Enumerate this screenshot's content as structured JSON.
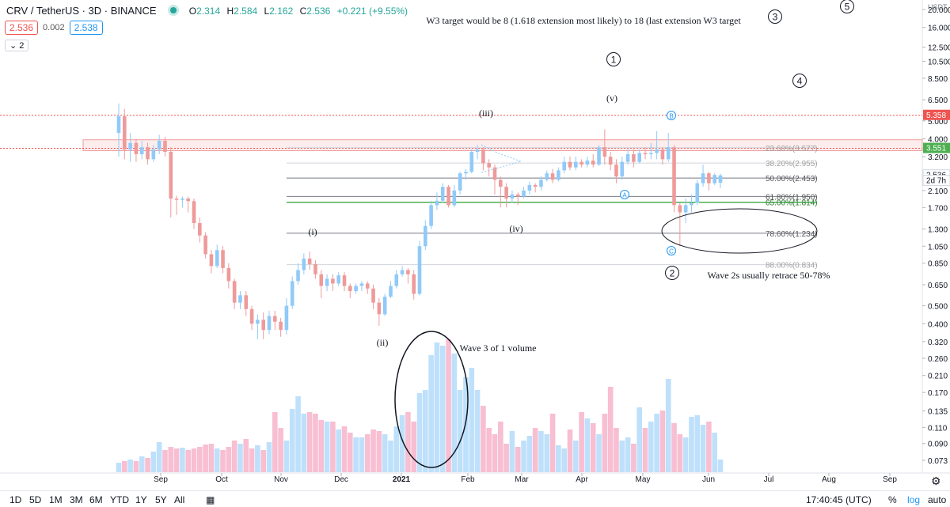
{
  "header": {
    "symbol": "CRV / TetherUS · 3D · BINANCE",
    "ohlc": [
      {
        "label": "O",
        "value": "2.314"
      },
      {
        "label": "H",
        "value": "2.584"
      },
      {
        "label": "L",
        "value": "2.162"
      },
      {
        "label": "C",
        "value": "2.536"
      },
      {
        "label": "",
        "value": "+0.221 (+9.55%)"
      }
    ],
    "bid": "2.536",
    "spread": "0.002",
    "ask": "2.538",
    "collapse_label": "2"
  },
  "colors": {
    "up": "#90caf9",
    "down": "#ef9a9a",
    "green_line": "#4caf50",
    "red_dotted": "#ef5350",
    "fib_label": "#9e9e9e",
    "price_tag": "#ef5350",
    "price_tag2": "#4caf50"
  },
  "chart_data": {
    "type": "candlestick",
    "y_scale": "log",
    "ylim": [
      0.066,
      22
    ],
    "y_ticks": [
      "20.000",
      "16.000",
      "12.500",
      "10.500",
      "8.500",
      "6.500",
      "5.000",
      "4.000",
      "3.200",
      "2.100",
      "1.700",
      "1.300",
      "1.050",
      "0.850",
      "0.650",
      "0.500",
      "0.400",
      "0.320",
      "0.260",
      "0.210",
      "0.170",
      "0.135",
      "0.110",
      "0.090",
      "0.073"
    ],
    "y_unit": "USDT",
    "x_ticks": [
      "Sep",
      "Oct",
      "Nov",
      "Dec",
      "2021",
      "Feb",
      "Mar",
      "Apr",
      "May",
      "Jun",
      "Jul",
      "Aug",
      "Sep"
    ],
    "price_tags": [
      {
        "label": "5.358",
        "value": 5.358,
        "color": "#ef5350"
      },
      {
        "label": "3.551",
        "value": 3.551,
        "color": "#4caf50"
      },
      {
        "label": "2.536",
        "value": 2.536,
        "color": "#131722"
      },
      {
        "label": "2d 7h",
        "value": 2.37,
        "color": "#131722"
      }
    ],
    "candles": [
      [
        4.3,
        5.3,
        3.2,
        6.2
      ],
      [
        5.3,
        3.5,
        3.1,
        5.8
      ],
      [
        3.5,
        3.8,
        3.0,
        4.3
      ],
      [
        3.8,
        3.3,
        3.0,
        4.0
      ],
      [
        3.3,
        3.6,
        3.1,
        3.9
      ],
      [
        3.6,
        3.1,
        2.9,
        3.8
      ],
      [
        3.1,
        3.5,
        3.0,
        3.7
      ],
      [
        3.5,
        3.9,
        3.3,
        4.2
      ],
      [
        3.9,
        3.4,
        3.2,
        4.1
      ],
      [
        3.4,
        1.9,
        1.5,
        3.6
      ],
      [
        1.9,
        1.87,
        1.55,
        1.97
      ],
      [
        1.87,
        1.9,
        1.7,
        1.95
      ],
      [
        1.9,
        1.84,
        1.6,
        1.95
      ],
      [
        1.84,
        1.4,
        1.3,
        1.9
      ],
      [
        1.4,
        1.2,
        1.1,
        1.5
      ],
      [
        1.2,
        0.95,
        0.9,
        1.25
      ],
      [
        0.95,
        0.82,
        0.75,
        1.0
      ],
      [
        0.82,
        1.0,
        0.8,
        1.07
      ],
      [
        1.0,
        0.8,
        0.75,
        1.05
      ],
      [
        0.8,
        0.68,
        0.62,
        0.85
      ],
      [
        0.68,
        0.52,
        0.48,
        0.7
      ],
      [
        0.52,
        0.57,
        0.48,
        0.6
      ],
      [
        0.57,
        0.48,
        0.44,
        0.6
      ],
      [
        0.48,
        0.4,
        0.37,
        0.5
      ],
      [
        0.4,
        0.42,
        0.33,
        0.45
      ],
      [
        0.42,
        0.37,
        0.33,
        0.46
      ],
      [
        0.37,
        0.44,
        0.35,
        0.47
      ],
      [
        0.44,
        0.41,
        0.37,
        0.47
      ],
      [
        0.41,
        0.37,
        0.34,
        0.43
      ],
      [
        0.37,
        0.5,
        0.35,
        0.55
      ],
      [
        0.5,
        0.68,
        0.48,
        0.72
      ],
      [
        0.68,
        0.78,
        0.65,
        0.85
      ],
      [
        0.78,
        0.9,
        0.74,
        0.96
      ],
      [
        0.9,
        0.84,
        0.78,
        0.98
      ],
      [
        0.84,
        0.74,
        0.7,
        0.88
      ],
      [
        0.74,
        0.64,
        0.55,
        0.78
      ],
      [
        0.64,
        0.7,
        0.6,
        0.74
      ],
      [
        0.7,
        0.66,
        0.6,
        0.74
      ],
      [
        0.66,
        0.73,
        0.64,
        0.76
      ],
      [
        0.73,
        0.64,
        0.6,
        0.76
      ],
      [
        0.64,
        0.6,
        0.55,
        0.66
      ],
      [
        0.6,
        0.64,
        0.58,
        0.66
      ],
      [
        0.64,
        0.66,
        0.6,
        0.68
      ],
      [
        0.66,
        0.62,
        0.58,
        0.68
      ],
      [
        0.62,
        0.52,
        0.48,
        0.65
      ],
      [
        0.52,
        0.45,
        0.39,
        0.55
      ],
      [
        0.45,
        0.56,
        0.44,
        0.58
      ],
      [
        0.56,
        0.64,
        0.55,
        0.68
      ],
      [
        0.64,
        0.74,
        0.62,
        0.78
      ],
      [
        0.74,
        0.78,
        0.72,
        0.82
      ],
      [
        0.78,
        0.74,
        0.66,
        0.8
      ],
      [
        0.74,
        0.58,
        0.54,
        0.78
      ],
      [
        0.58,
        1.05,
        0.57,
        1.12
      ],
      [
        1.05,
        1.35,
        1.0,
        1.45
      ],
      [
        1.35,
        1.75,
        1.3,
        1.85
      ],
      [
        1.75,
        1.85,
        1.65,
        2.05
      ],
      [
        1.85,
        2.2,
        1.8,
        2.3
      ],
      [
        2.2,
        1.75,
        1.7,
        2.25
      ],
      [
        1.75,
        2.1,
        1.7,
        2.25
      ],
      [
        2.1,
        2.6,
        2.0,
        2.65
      ],
      [
        2.6,
        2.65,
        2.4,
        2.75
      ],
      [
        2.65,
        3.4,
        2.6,
        3.5
      ],
      [
        3.4,
        3.5,
        3.1,
        3.7
      ],
      [
        3.5,
        2.95,
        2.7,
        3.6
      ],
      [
        2.95,
        2.8,
        2.5,
        3.1
      ],
      [
        2.8,
        2.4,
        2.0,
        2.9
      ],
      [
        2.4,
        2.2,
        1.7,
        2.5
      ],
      [
        2.2,
        1.9,
        1.7,
        2.3
      ],
      [
        1.9,
        2.0,
        1.8,
        2.1
      ],
      [
        2.0,
        1.95,
        1.75,
        2.05
      ],
      [
        1.95,
        2.1,
        1.9,
        2.2
      ],
      [
        2.1,
        2.25,
        2.0,
        2.35
      ],
      [
        2.25,
        2.2,
        2.05,
        2.3
      ],
      [
        2.2,
        2.4,
        2.1,
        2.5
      ],
      [
        2.4,
        2.6,
        2.35,
        2.7
      ],
      [
        2.6,
        2.4,
        2.3,
        2.75
      ],
      [
        2.4,
        2.7,
        2.35,
        2.8
      ],
      [
        2.7,
        3.0,
        2.6,
        3.2
      ],
      [
        3.0,
        2.8,
        2.7,
        3.2
      ],
      [
        2.8,
        3.0,
        2.7,
        3.2
      ],
      [
        3.0,
        2.9,
        2.8,
        3.1
      ],
      [
        2.9,
        3.05,
        2.8,
        3.2
      ],
      [
        3.05,
        2.9,
        2.8,
        3.3
      ],
      [
        2.9,
        3.6,
        2.85,
        3.7
      ],
      [
        3.6,
        3.2,
        2.9,
        4.5
      ],
      [
        3.2,
        2.9,
        2.7,
        3.4
      ],
      [
        2.9,
        2.5,
        2.3,
        3.1
      ],
      [
        2.5,
        3.0,
        2.4,
        3.2
      ],
      [
        3.0,
        3.3,
        2.9,
        3.5
      ],
      [
        3.3,
        3.0,
        2.8,
        3.5
      ],
      [
        3.0,
        3.35,
        2.95,
        3.5
      ],
      [
        3.35,
        3.3,
        3.1,
        3.6
      ],
      [
        3.3,
        3.35,
        3.1,
        3.8
      ],
      [
        3.35,
        3.5,
        3.1,
        4.4
      ],
      [
        3.5,
        3.1,
        2.9,
        3.6
      ],
      [
        3.1,
        3.6,
        3.0,
        4.3
      ],
      [
        3.6,
        1.75,
        1.6,
        3.7
      ],
      [
        1.75,
        1.6,
        1.05,
        1.8
      ],
      [
        1.6,
        1.75,
        1.4,
        1.9
      ],
      [
        1.75,
        1.8,
        1.6,
        2.0
      ],
      [
        1.8,
        2.3,
        1.75,
        2.4
      ],
      [
        2.3,
        2.6,
        2.2,
        2.9
      ],
      [
        2.6,
        2.3,
        2.1,
        2.65
      ],
      [
        2.3,
        2.55,
        2.25,
        2.6
      ],
      [
        2.314,
        2.536,
        2.162,
        2.584
      ]
    ],
    "volume_style": "bars colored by candle direction, bottom pane",
    "fib_levels": [
      {
        "label": "23.60%(3.577)",
        "value": 3.577
      },
      {
        "label": "38.20%(2.955)",
        "value": 2.955
      },
      {
        "label": "50.00%(2.453)",
        "value": 2.453
      },
      {
        "label": "61.80%(1.950)",
        "value": 1.95
      },
      {
        "label": "65.00%(1.814)",
        "value": 1.814
      },
      {
        "label": "78.60%(1.234)",
        "value": 1.234
      },
      {
        "label": "88.00%(0.834)",
        "value": 0.834
      }
    ],
    "horizontal_lines": [
      {
        "value": 5.358,
        "style": "red-dotted"
      },
      {
        "value": 3.551,
        "style": "red-dotted"
      }
    ],
    "resistance_zone": [
      3.45,
      3.95
    ],
    "annotations": [
      {
        "text": "W3 target would be 8 (1.618 extension most likely) to 18 (last extension W3 target",
        "type": "text"
      },
      {
        "text": "(i)",
        "type": "wave"
      },
      {
        "text": "(ii)",
        "type": "wave"
      },
      {
        "text": "(iii)",
        "type": "wave"
      },
      {
        "text": "(iv)",
        "type": "wave"
      },
      {
        "text": "(v)",
        "type": "wave"
      },
      {
        "text": "1",
        "type": "circled"
      },
      {
        "text": "2",
        "type": "circled"
      },
      {
        "text": "3",
        "type": "circled"
      },
      {
        "text": "4",
        "type": "circled"
      },
      {
        "text": "5",
        "type": "circled"
      },
      {
        "text": "A",
        "type": "circled-blue"
      },
      {
        "text": "B",
        "type": "circled-blue"
      },
      {
        "text": "C",
        "type": "circled-blue"
      },
      {
        "text": "Wave 3 of 1 volume",
        "type": "text"
      },
      {
        "text": "Wave 2s usually retrace 50-78%",
        "type": "text"
      }
    ]
  },
  "bottom_bar": {
    "ranges": [
      "1D",
      "5D",
      "1M",
      "3M",
      "6M",
      "YTD",
      "1Y",
      "5Y",
      "All"
    ],
    "time": "17:40:45 (UTC)",
    "percent_label": "%",
    "log_label": "log",
    "auto_label": "auto"
  }
}
